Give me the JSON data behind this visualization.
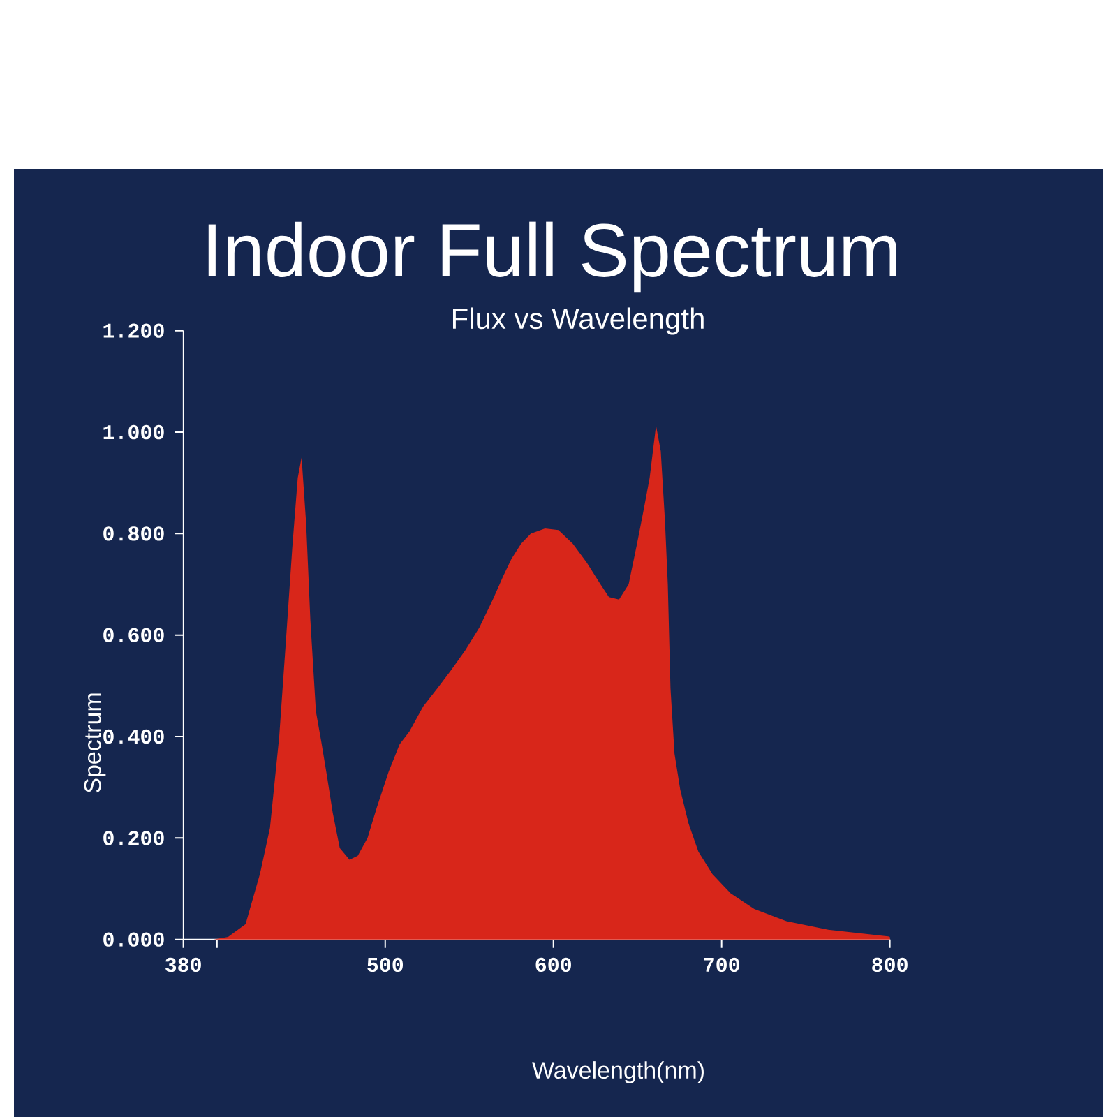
{
  "chart_data": {
    "type": "area",
    "title": "Indoor Full Spectrum",
    "subtitle": "Flux vs Wavelength",
    "xlabel": "Wavelength(nm)",
    "ylabel": "Spectrum",
    "color": "#d8261a",
    "x": [
      380,
      398,
      406.6,
      417,
      425.6,
      431.5,
      437,
      441,
      444.7,
      448,
      450.3,
      453,
      455.5,
      458.8,
      462,
      465.5,
      468.8,
      473,
      478.8,
      483.7,
      489.5,
      495,
      502,
      508.6,
      514.4,
      522.7,
      531,
      539,
      547.6,
      556,
      564,
      570,
      575,
      580.8,
      586.6,
      595,
      603,
      611.5,
      619.8,
      628,
      633,
      639,
      644.7,
      649.7,
      654,
      657.2,
      661,
      663.8,
      666.3,
      668,
      669.6,
      672,
      675.4,
      680.4,
      686.2,
      694.5,
      705.3,
      719.4,
      738.5,
      763.4,
      799,
      800
    ],
    "values": [
      0,
      0,
      0.005,
      0.03,
      0.13,
      0.22,
      0.4,
      0.59,
      0.77,
      0.91,
      0.95,
      0.82,
      0.63,
      0.45,
      0.39,
      0.32,
      0.25,
      0.18,
      0.157,
      0.165,
      0.2,
      0.26,
      0.33,
      0.385,
      0.41,
      0.46,
      0.495,
      0.53,
      0.57,
      0.615,
      0.67,
      0.715,
      0.75,
      0.78,
      0.8,
      0.81,
      0.807,
      0.78,
      0.743,
      0.7,
      0.675,
      0.67,
      0.7,
      0.78,
      0.853,
      0.91,
      1.013,
      0.963,
      0.826,
      0.7,
      0.495,
      0.366,
      0.295,
      0.228,
      0.173,
      0.129,
      0.091,
      0.06,
      0.036,
      0.019,
      0.006,
      0.005
    ],
    "xlim": [
      380,
      800
    ],
    "ylim": [
      0,
      1.2
    ],
    "xticks": [
      {
        "value": 380,
        "label": "380"
      },
      {
        "value": 400,
        "label": null
      },
      500,
      600,
      700,
      800
    ],
    "yticks": [
      {
        "value": 0,
        "label": "0.000"
      },
      {
        "value": 0.2,
        "label": "0.200"
      },
      {
        "value": 0.4,
        "label": "0.400"
      },
      {
        "value": 0.6,
        "label": "0.600"
      },
      {
        "value": 0.8,
        "label": "0.800"
      },
      {
        "value": 1.0,
        "label": "1.000"
      },
      {
        "value": 1.2,
        "label": "1.200"
      }
    ]
  }
}
